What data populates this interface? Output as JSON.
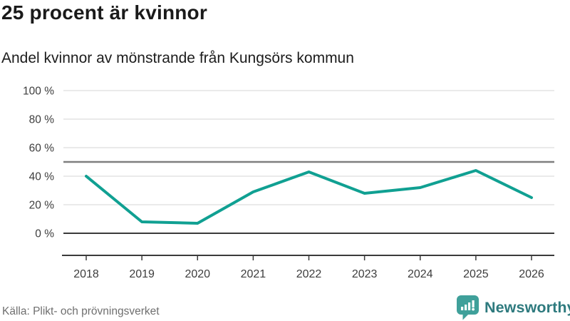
{
  "header": {
    "title": "25 procent är kvinnor",
    "subtitle": "Andel kvinnor av mönstrande från Kungsörs kommun"
  },
  "footer": {
    "source": "Källa: Plikt- och prövningsverket",
    "brand": "Newsworthy"
  },
  "chart_data": {
    "type": "line",
    "title": "25 procent är kvinnor",
    "subtitle": "Andel kvinnor av mönstrande från Kungsörs kommun",
    "categories": [
      "2018",
      "2019",
      "2020",
      "2021",
      "2022",
      "2023",
      "2024",
      "2025",
      "2026"
    ],
    "series": [
      {
        "name": "Andel kvinnor av mönstrande",
        "values": [
          40,
          8,
          7,
          29,
          43,
          28,
          32,
          44,
          25
        ]
      }
    ],
    "unit": "%",
    "ylim": [
      0,
      100
    ],
    "yticks": [
      0,
      20,
      40,
      60,
      80,
      100
    ],
    "ytick_format": "{v} %",
    "reference_line": 50,
    "grid": true,
    "legend": "none",
    "colors": {
      "line": "#10a092",
      "grid": "#e4e4e4",
      "reference_line": "#7f7f7f",
      "zero_line": "#3a3a3a",
      "tick_text": "#3d3d3d"
    },
    "source": "Källa: Plikt- och prövningsverket"
  },
  "brand_colors": {
    "logo_teal": "#3fa09a",
    "wordmark_teal": "#2e7a7e"
  }
}
